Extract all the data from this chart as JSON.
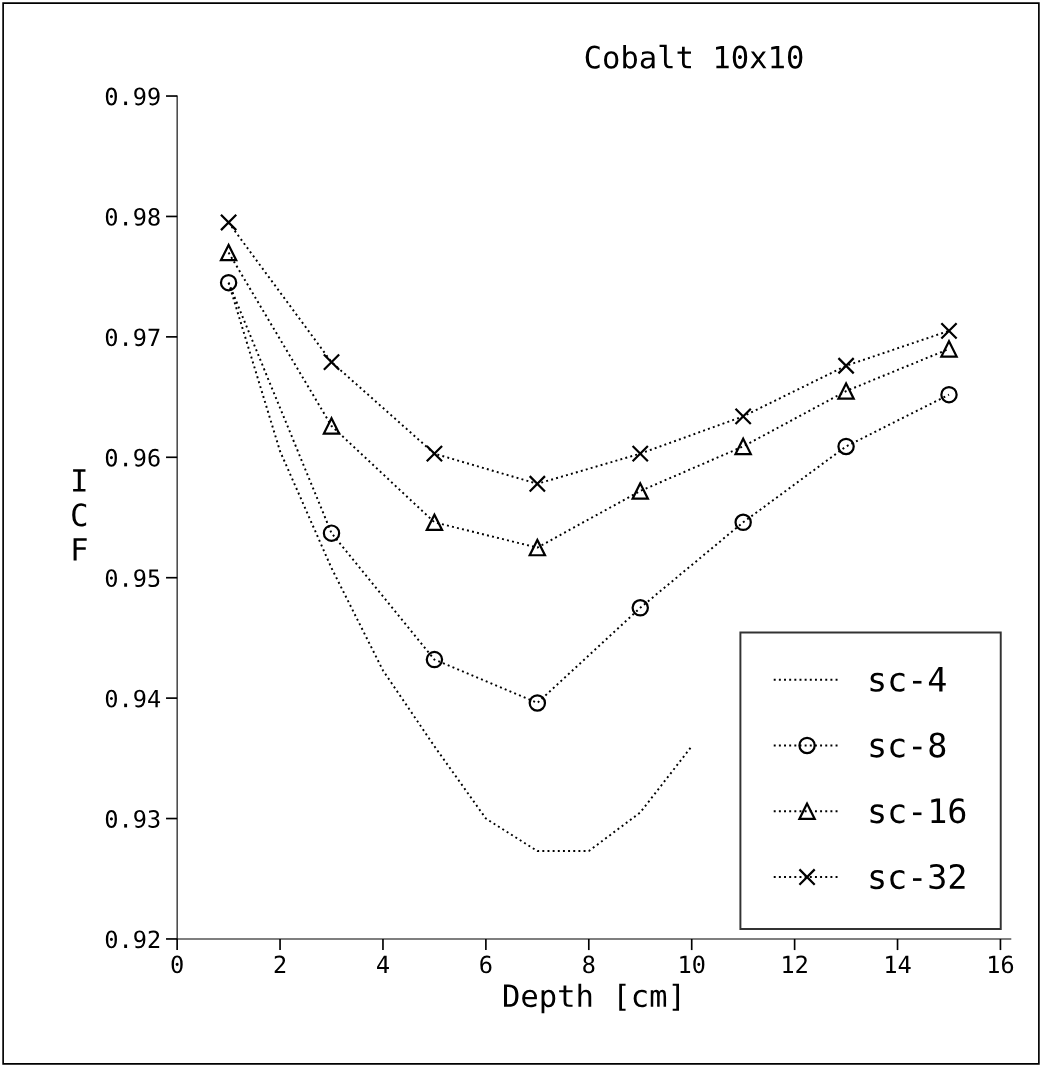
{
  "chart_data": {
    "type": "line",
    "title": "Cobalt 10x10",
    "xlabel": "Depth [cm]",
    "ylabel": "ICF",
    "xlim": [
      0,
      16.2
    ],
    "xticks": [
      0,
      2,
      4,
      6,
      8,
      10,
      12,
      14,
      16
    ],
    "ylim": [
      0.92,
      0.99
    ],
    "yticks": [
      0.92,
      0.93,
      0.94,
      0.95,
      0.96,
      0.97,
      0.98,
      0.99
    ],
    "grid": false,
    "legend": "bottom right",
    "series": [
      {
        "name": "sc-4",
        "color": "#000000",
        "marker": "none",
        "line_style": "dotted",
        "x": [
          1,
          2,
          3,
          4,
          5,
          6,
          7,
          8,
          9,
          10
        ],
        "values": [
          0.9745,
          0.9605,
          0.9508,
          0.9423,
          0.936,
          0.93,
          0.9273,
          0.9273,
          0.9305,
          0.936
        ]
      },
      {
        "name": "sc-8",
        "color": "#000000",
        "marker": "circle",
        "line_style": "dotted",
        "x": [
          1,
          3,
          5,
          7,
          9,
          11,
          13,
          15
        ],
        "values": [
          0.9745,
          0.9537,
          0.9432,
          0.9396,
          0.9475,
          0.9546,
          0.9609,
          0.9652
        ]
      },
      {
        "name": "sc-16",
        "color": "#000000",
        "marker": "triangle",
        "line_style": "dotted",
        "x": [
          1,
          3,
          5,
          7,
          9,
          11,
          13,
          15
        ],
        "values": [
          0.977,
          0.9626,
          0.9546,
          0.9525,
          0.9572,
          0.9609,
          0.9655,
          0.969
        ]
      },
      {
        "name": "sc-32",
        "color": "#000000",
        "marker": "cross",
        "line_style": "dotted",
        "x": [
          1,
          3,
          5,
          7,
          9,
          11,
          13,
          15
        ],
        "values": [
          0.9795,
          0.9679,
          0.9603,
          0.9578,
          0.9603,
          0.9634,
          0.9676,
          0.9705
        ]
      }
    ]
  }
}
